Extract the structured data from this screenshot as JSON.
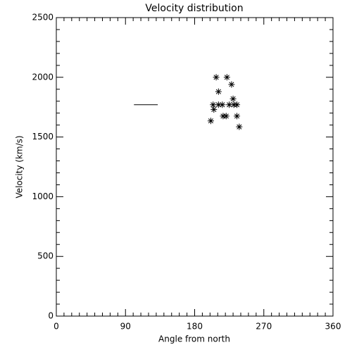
{
  "chart_data": {
    "type": "scatter",
    "title": "Velocity distribution",
    "xlabel": "Angle from north",
    "ylabel": "Velocity (km/s)",
    "xlim": [
      0,
      360
    ],
    "ylim": [
      0,
      2500
    ],
    "xticks": [
      0,
      90,
      180,
      270,
      360
    ],
    "yticks": [
      0,
      500,
      1000,
      1500,
      2000,
      2500
    ],
    "xminorticks": [
      10,
      20,
      30,
      40,
      50,
      60,
      70,
      80,
      100,
      110,
      120,
      130,
      140,
      150,
      160,
      170,
      190,
      200,
      210,
      220,
      230,
      240,
      250,
      260,
      280,
      290,
      300,
      310,
      320,
      330,
      340,
      350
    ],
    "yminorticks": [
      100,
      200,
      300,
      400,
      600,
      700,
      800,
      900,
      1100,
      1200,
      1300,
      1400,
      1600,
      1700,
      1800,
      1900,
      2100,
      2200,
      2300,
      2400
    ],
    "color": "#000000",
    "x": [
      208,
      222,
      211,
      228,
      230,
      204,
      211,
      216,
      225,
      231,
      235,
      205,
      217,
      221,
      235,
      201,
      238
    ],
    "y": [
      2000,
      2000,
      1880,
      1940,
      1820,
      1770,
      1770,
      1770,
      1770,
      1770,
      1770,
      1730,
      1675,
      1675,
      1675,
      1635,
      1585
    ],
    "segment": {
      "x": [
        101,
        132
      ],
      "y": [
        1770,
        1770
      ]
    }
  }
}
